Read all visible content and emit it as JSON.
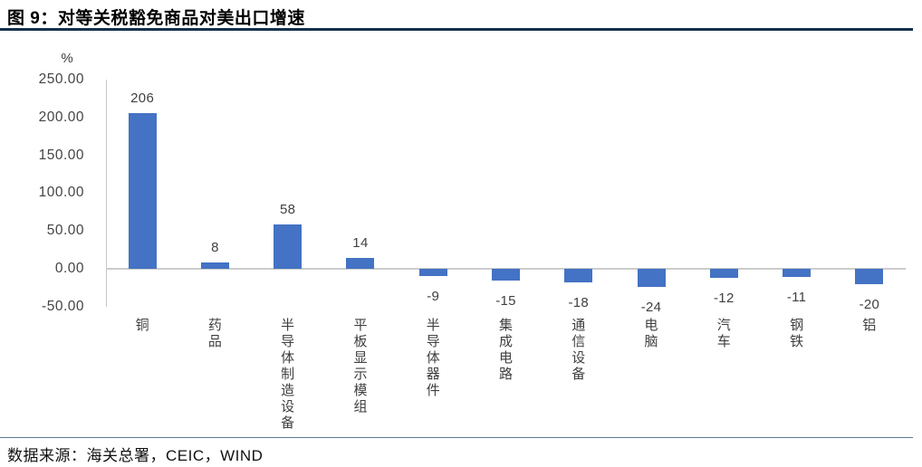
{
  "header": {
    "title": "图 9：对等关税豁免商品对美出口增速"
  },
  "chart_data": {
    "type": "bar",
    "title": "对等关税豁免商品对美出口增速",
    "unit": "%",
    "categories": [
      "铜",
      "药品",
      "半导体制造设备",
      "平板显示模组",
      "半导体器件",
      "集成电路",
      "通信设备",
      "电脑",
      "汽车",
      "钢铁",
      "铝"
    ],
    "values": [
      206,
      8,
      58,
      14,
      -9,
      -15,
      -18,
      -24,
      -12,
      -11,
      -20
    ],
    "data_labels": [
      "206",
      "8",
      "58",
      "14",
      "-9",
      "-15",
      "-18",
      "-24",
      "-12",
      "-11",
      "-20"
    ],
    "ylim": [
      -50,
      250
    ],
    "yticks": [
      250,
      200,
      150,
      100,
      50,
      0,
      -50
    ],
    "ytick_labels": [
      "250.00",
      "200.00",
      "150.00",
      "100.00",
      "50.00",
      "0.00",
      "-50.00"
    ],
    "ylabel": "%",
    "xlabel": "",
    "grid": false,
    "legend_position": "none",
    "bar_color": "#4472c4"
  },
  "footer": {
    "source": "数据来源：海关总署，CEIC，WIND"
  }
}
